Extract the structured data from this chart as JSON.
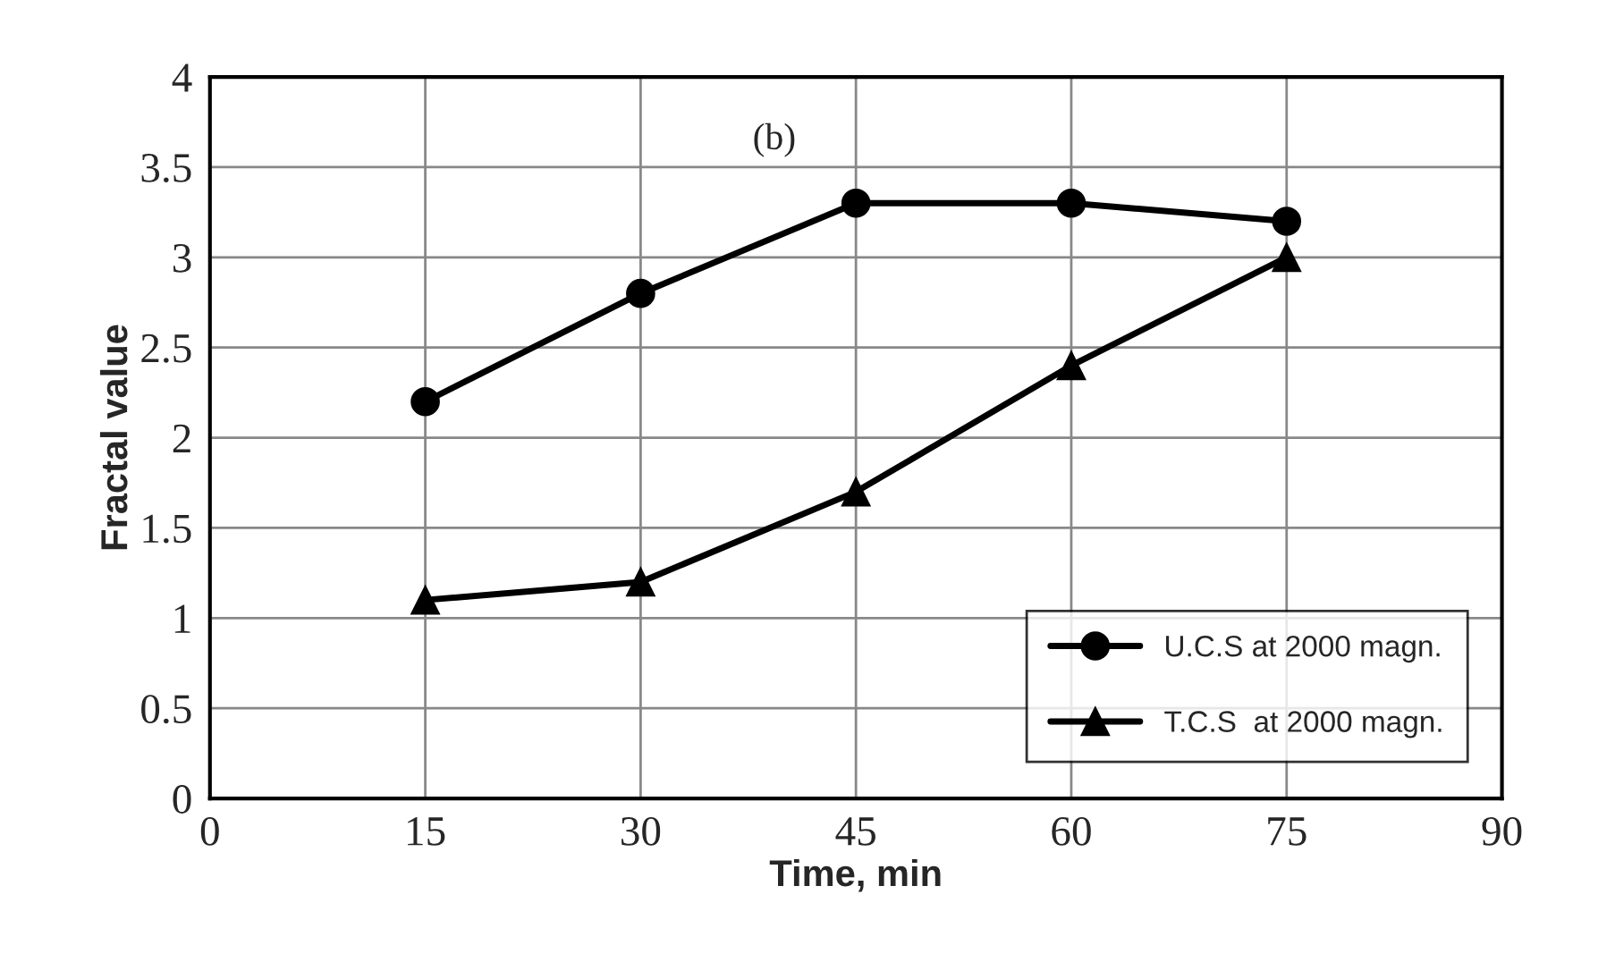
{
  "chart_data": {
    "type": "line",
    "xlabel": "Time, min",
    "ylabel": "Fractal value",
    "annotations": [
      "(b)"
    ],
    "x": [
      15,
      30,
      45,
      60,
      75
    ],
    "series": [
      {
        "name": "U.C.S at 2000 magn.",
        "color": "#000000",
        "marker": "circle",
        "values": [
          2.2,
          2.8,
          3.3,
          3.3,
          3.2
        ]
      },
      {
        "name": "T.C.S  at 2000 magn.",
        "color": "#000000",
        "marker": "triangle",
        "values": [
          1.1,
          1.2,
          1.7,
          2.4,
          3.0
        ]
      }
    ],
    "xlim": [
      0,
      90
    ],
    "xticks": [
      0,
      15,
      30,
      45,
      60,
      75,
      90
    ],
    "ylim": [
      0,
      4
    ],
    "yticks": [
      0,
      0.5,
      1,
      1.5,
      2,
      2.5,
      3,
      3.5,
      4
    ],
    "grid": true,
    "legend": "bottom right",
    "line_style": "solid"
  }
}
